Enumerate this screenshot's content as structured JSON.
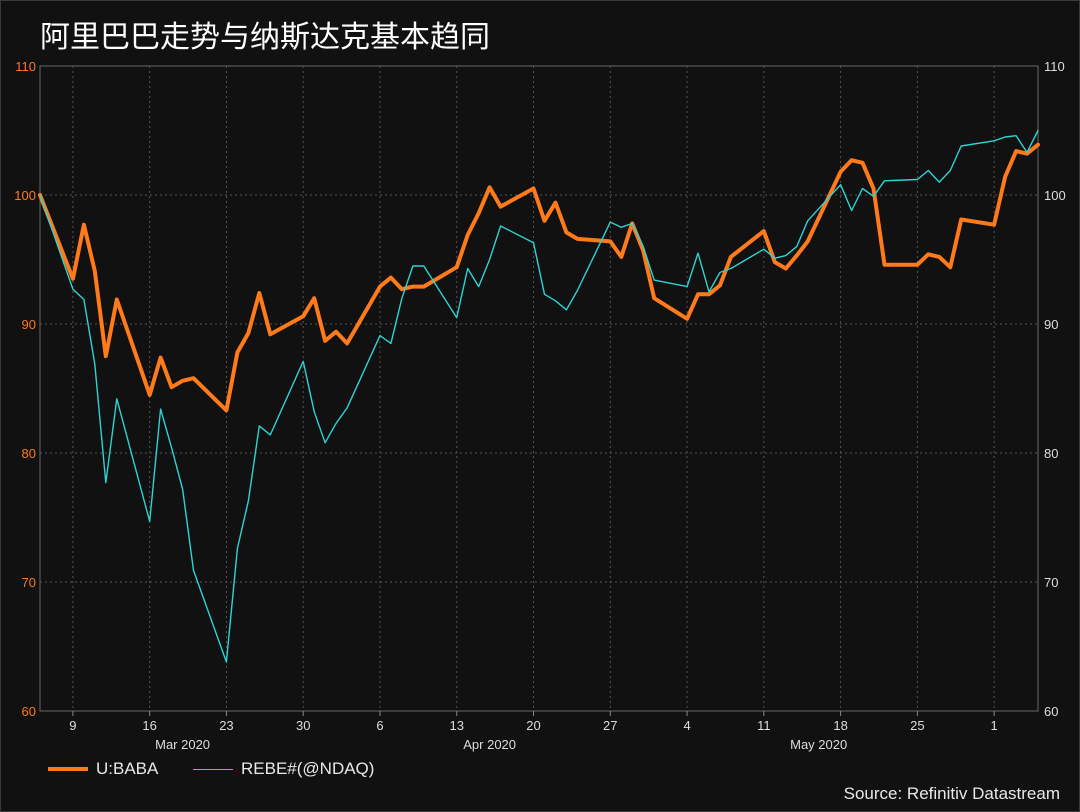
{
  "title": "阿里巴巴走势与纳斯达克基本趋同",
  "source": "Source: Refinitiv Datastream",
  "colors": {
    "baba": "#ff7a1a",
    "ndaq": "#2ed3d3",
    "background": "#111111",
    "grid": "#555555",
    "left_axis_text": "#ff7a1a",
    "right_axis_text": "#dddddd",
    "x_axis_text": "#dddddd"
  },
  "chart_data": {
    "type": "line",
    "title": "阿里巴巴走势与纳斯达克基本趋同",
    "xlabel": "",
    "ylabel": "",
    "ylim": [
      60,
      110
    ],
    "y2lim": [
      60,
      110
    ],
    "yticks": [
      60,
      70,
      80,
      90,
      100,
      110
    ],
    "x_ticks": [
      {
        "label": "9",
        "x": "2020-03-09"
      },
      {
        "label": "16",
        "x": "2020-03-16"
      },
      {
        "label": "23",
        "x": "2020-03-23"
      },
      {
        "label": "30",
        "x": "2020-03-30"
      },
      {
        "label": "6",
        "x": "2020-04-06"
      },
      {
        "label": "13",
        "x": "2020-04-13"
      },
      {
        "label": "20",
        "x": "2020-04-20"
      },
      {
        "label": "27",
        "x": "2020-04-27"
      },
      {
        "label": "4",
        "x": "2020-05-04"
      },
      {
        "label": "11",
        "x": "2020-05-11"
      },
      {
        "label": "18",
        "x": "2020-05-18"
      },
      {
        "label": "25",
        "x": "2020-05-25"
      },
      {
        "label": "1",
        "x": "2020-06-01"
      }
    ],
    "month_labels": [
      {
        "label": "Mar 2020",
        "x": "2020-03-19"
      },
      {
        "label": "Apr 2020",
        "x": "2020-04-16"
      },
      {
        "label": "May 2020",
        "x": "2020-05-16"
      }
    ],
    "x": [
      "2020-03-06",
      "2020-03-09",
      "2020-03-10",
      "2020-03-11",
      "2020-03-12",
      "2020-03-13",
      "2020-03-16",
      "2020-03-17",
      "2020-03-18",
      "2020-03-19",
      "2020-03-20",
      "2020-03-23",
      "2020-03-24",
      "2020-03-25",
      "2020-03-26",
      "2020-03-27",
      "2020-03-30",
      "2020-03-31",
      "2020-04-01",
      "2020-04-02",
      "2020-04-03",
      "2020-04-06",
      "2020-04-07",
      "2020-04-08",
      "2020-04-09",
      "2020-04-10",
      "2020-04-13",
      "2020-04-14",
      "2020-04-15",
      "2020-04-16",
      "2020-04-17",
      "2020-04-20",
      "2020-04-21",
      "2020-04-22",
      "2020-04-23",
      "2020-04-24",
      "2020-04-27",
      "2020-04-28",
      "2020-04-29",
      "2020-04-30",
      "2020-05-01",
      "2020-05-04",
      "2020-05-05",
      "2020-05-06",
      "2020-05-07",
      "2020-05-08",
      "2020-05-11",
      "2020-05-12",
      "2020-05-13",
      "2020-05-14",
      "2020-05-15",
      "2020-05-18",
      "2020-05-19",
      "2020-05-20",
      "2020-05-21",
      "2020-05-22",
      "2020-05-25",
      "2020-05-26",
      "2020-05-27",
      "2020-05-28",
      "2020-05-29",
      "2020-06-01",
      "2020-06-02",
      "2020-06-03",
      "2020-06-04",
      "2020-06-05"
    ],
    "series": [
      {
        "name": "U:BABA",
        "axis": "left",
        "values": [
          100.0,
          93.5,
          97.7,
          94.1,
          87.5,
          91.9,
          84.5,
          87.4,
          85.1,
          85.6,
          85.8,
          83.3,
          87.8,
          89.3,
          92.4,
          89.2,
          90.6,
          92.0,
          88.7,
          89.4,
          88.5,
          92.9,
          93.6,
          92.7,
          92.9,
          92.9,
          94.4,
          96.9,
          98.6,
          100.6,
          99.1,
          100.5,
          98.0,
          99.4,
          97.1,
          96.6,
          96.4,
          95.2,
          97.8,
          95.7,
          92.0,
          90.4,
          92.3,
          92.3,
          93.0,
          95.2,
          97.2,
          94.8,
          94.3,
          95.3,
          96.4,
          101.8,
          102.7,
          102.5,
          100.5,
          94.6,
          94.6,
          95.4,
          95.2,
          94.4,
          98.1,
          97.7,
          101.4,
          103.4,
          103.2,
          103.9
        ]
      },
      {
        "name": "REBE#(@NDAQ)",
        "axis": "right",
        "values": [
          100.0,
          92.7,
          91.9,
          86.9,
          77.7,
          84.2,
          74.7,
          83.4,
          80.4,
          77.2,
          70.9,
          63.8,
          72.6,
          76.3,
          82.1,
          81.4,
          87.1,
          83.2,
          80.8,
          82.3,
          83.5,
          89.1,
          88.5,
          92.0,
          94.5,
          94.5,
          90.5,
          94.3,
          92.9,
          95.0,
          97.6,
          96.3,
          92.3,
          91.8,
          91.1,
          92.6,
          97.9,
          97.5,
          97.8,
          96.0,
          93.4,
          92.9,
          95.5,
          92.5,
          94.0,
          94.3,
          95.8,
          95.1,
          95.3,
          96.0,
          98.0,
          100.8,
          98.8,
          100.5,
          99.9,
          101.1,
          101.2,
          101.9,
          101.0,
          101.9,
          103.8,
          104.2,
          104.5,
          104.6,
          103.3,
          105.0
        ]
      }
    ],
    "grid": true,
    "legend": "bottom-left"
  }
}
